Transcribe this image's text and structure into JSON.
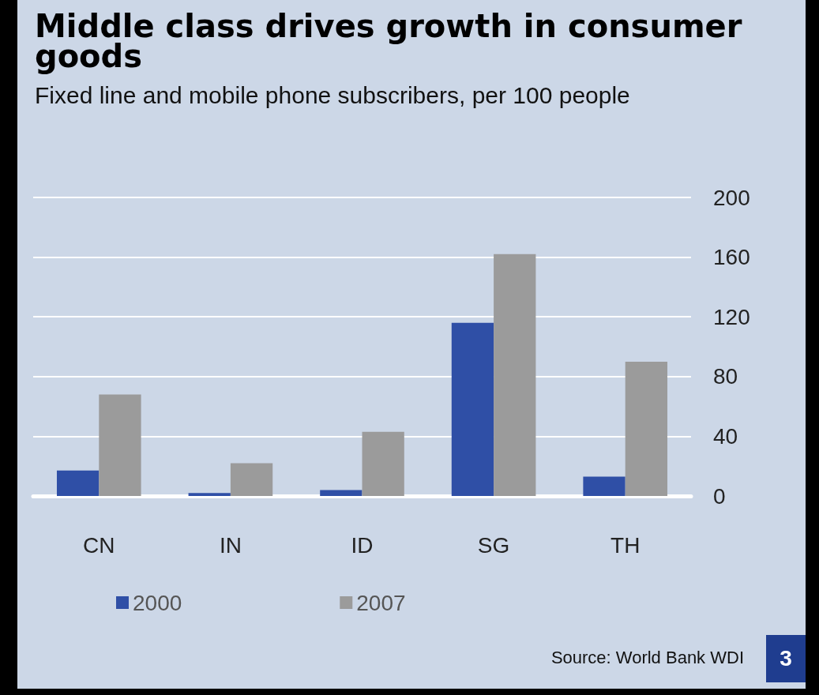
{
  "chart_data": {
    "type": "bar",
    "title": "Middle class drives growth in consumer goods",
    "subtitle": "Fixed line and mobile phone subscribers, per 100 people",
    "categories": [
      "CN",
      "IN",
      "ID",
      "SG",
      "TH"
    ],
    "series": [
      {
        "name": "2000",
        "color": "#2f4fa6",
        "values": [
          17,
          2,
          4,
          116,
          13
        ]
      },
      {
        "name": "2007",
        "color": "#9b9b9b",
        "values": [
          68,
          22,
          43,
          162,
          90
        ]
      }
    ],
    "ylim": [
      0,
      200
    ],
    "yticks": [
      0,
      40,
      80,
      120,
      160,
      200
    ],
    "grid": "y",
    "legend": "bottom",
    "annotations": [
      "Source: World Bank WDI",
      "3"
    ]
  }
}
